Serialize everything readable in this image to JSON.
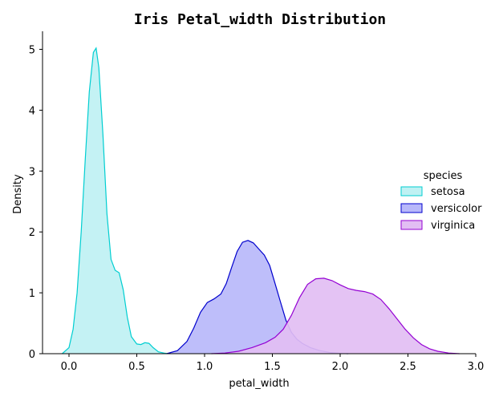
{
  "chart_data": {
    "type": "area",
    "title": "Iris Petal_width Distribution",
    "xlabel": "petal_width",
    "ylabel": "Density",
    "xlim": [
      -0.2,
      3.0
    ],
    "ylim": [
      0,
      5.3
    ],
    "xticks": [
      0.0,
      0.5,
      1.0,
      1.5,
      2.0,
      2.5,
      3.0
    ],
    "xtick_labels": [
      "0.0",
      "0.5",
      "1.0",
      "1.5",
      "2.0",
      "2.5",
      "3.0"
    ],
    "yticks": [
      0,
      1,
      2,
      3,
      4,
      5
    ],
    "ytick_labels": [
      "0",
      "1",
      "2",
      "3",
      "4",
      "5"
    ],
    "grid": false,
    "legend": {
      "title": "species",
      "placement": "center-right"
    },
    "series": [
      {
        "name": "setosa",
        "color": "#00CED1",
        "fill": "#BFF1F3",
        "x": [
          -0.05,
          0.0,
          0.03,
          0.06,
          0.09,
          0.12,
          0.15,
          0.18,
          0.2,
          0.22,
          0.25,
          0.28,
          0.31,
          0.34,
          0.37,
          0.4,
          0.43,
          0.46,
          0.5,
          0.53,
          0.56,
          0.59,
          0.62,
          0.66,
          0.7,
          0.73
        ],
        "y": [
          0.0,
          0.1,
          0.4,
          1.0,
          2.0,
          3.2,
          4.3,
          4.95,
          5.02,
          4.7,
          3.6,
          2.3,
          1.55,
          1.37,
          1.33,
          1.05,
          0.6,
          0.28,
          0.16,
          0.15,
          0.18,
          0.17,
          0.1,
          0.03,
          0.01,
          0.0
        ]
      },
      {
        "name": "versicolor",
        "color": "#0000CD",
        "fill": "#B8B8FA",
        "x": [
          0.72,
          0.8,
          0.87,
          0.92,
          0.97,
          1.02,
          1.07,
          1.12,
          1.16,
          1.2,
          1.24,
          1.28,
          1.32,
          1.36,
          1.4,
          1.44,
          1.48,
          1.52,
          1.56,
          1.6,
          1.64,
          1.68,
          1.72,
          1.78,
          1.85,
          1.92,
          2.0,
          2.06
        ],
        "y": [
          0.0,
          0.05,
          0.2,
          0.42,
          0.68,
          0.84,
          0.9,
          0.98,
          1.15,
          1.42,
          1.68,
          1.83,
          1.86,
          1.82,
          1.72,
          1.62,
          1.45,
          1.15,
          0.85,
          0.55,
          0.35,
          0.24,
          0.17,
          0.1,
          0.05,
          0.02,
          0.005,
          0.0
        ]
      },
      {
        "name": "virginica",
        "color": "#9400D3",
        "fill": "#E2BEF3",
        "x": [
          1.05,
          1.15,
          1.25,
          1.35,
          1.45,
          1.52,
          1.58,
          1.64,
          1.7,
          1.76,
          1.82,
          1.88,
          1.94,
          2.0,
          2.06,
          2.12,
          2.18,
          2.24,
          2.3,
          2.36,
          2.42,
          2.48,
          2.54,
          2.6,
          2.66,
          2.72,
          2.8,
          2.88
        ],
        "y": [
          0.0,
          0.01,
          0.04,
          0.1,
          0.18,
          0.27,
          0.4,
          0.63,
          0.92,
          1.14,
          1.23,
          1.24,
          1.2,
          1.13,
          1.07,
          1.04,
          1.02,
          0.98,
          0.89,
          0.74,
          0.57,
          0.4,
          0.26,
          0.15,
          0.08,
          0.04,
          0.01,
          0.0
        ]
      }
    ]
  }
}
